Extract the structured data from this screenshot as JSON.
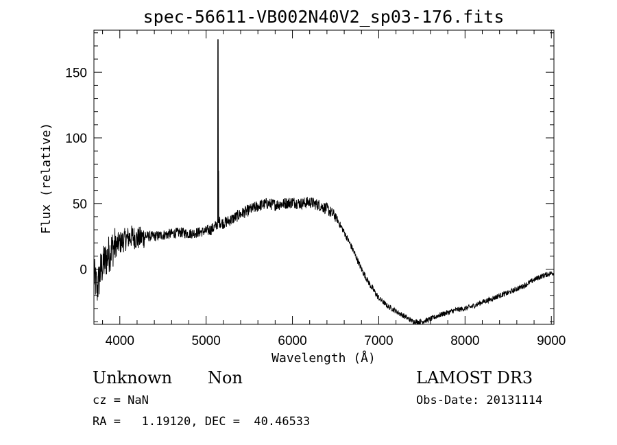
{
  "chart_data": {
    "type": "line",
    "title": "spec-56611-VB002N40V2_sp03-176.fits",
    "xlabel": "Wavelength (Å)",
    "ylabel": "Flux (relative)",
    "xlim": [
      3700,
      9030
    ],
    "ylim": [
      -42,
      182
    ],
    "xticks": [
      4000,
      5000,
      6000,
      7000,
      8000,
      9000
    ],
    "yticks": [
      0,
      50,
      100,
      150
    ],
    "xtick_labels": [
      "4000",
      "5000",
      "6000",
      "7000",
      "8000",
      "9000"
    ],
    "ytick_labels": [
      "0",
      "50",
      "100",
      "150"
    ],
    "series": [
      {
        "name": "flux",
        "x": [
          3700,
          3740,
          3780,
          3820,
          3860,
          3900,
          3950,
          4000,
          4050,
          4100,
          4150,
          4200,
          4300,
          4400,
          4500,
          4600,
          4700,
          4800,
          4900,
          5000,
          5050,
          5100,
          5120,
          5150,
          5200,
          5300,
          5400,
          5500,
          5600,
          5700,
          5800,
          5900,
          6000,
          6100,
          6200,
          6300,
          6400,
          6500,
          6600,
          6700,
          6800,
          6900,
          7000,
          7100,
          7200,
          7300,
          7400,
          7500,
          7600,
          7700,
          7800,
          7900,
          8000,
          8100,
          8200,
          8300,
          8400,
          8500,
          8600,
          8700,
          8800,
          8900,
          9000
        ],
        "y": [
          -5,
          -15,
          0,
          5,
          10,
          15,
          18,
          20,
          22,
          24,
          25,
          23,
          25,
          25,
          26,
          27,
          28,
          27,
          28,
          29,
          30,
          32,
          34,
          36,
          35,
          38,
          42,
          45,
          48,
          50,
          49,
          50,
          51,
          50,
          51,
          49,
          46,
          40,
          28,
          15,
          0,
          -12,
          -22,
          -28,
          -32,
          -36,
          -40,
          -40,
          -38,
          -35,
          -33,
          -31,
          -30,
          -28,
          -25,
          -23,
          -20,
          -18,
          -15,
          -12,
          -8,
          -5,
          -3
        ]
      }
    ],
    "spikes": [
      {
        "x": 5138,
        "y": 175
      },
      {
        "x": 5142,
        "y": 75
      }
    ]
  },
  "info": {
    "class_label": "Unknown",
    "subclass_label": "Non",
    "survey": "LAMOST DR3",
    "cz": "cz = NaN",
    "obs_date": "Obs-Date: 20131114",
    "coords": "RA =   1.19120, DEC =  40.46533"
  }
}
